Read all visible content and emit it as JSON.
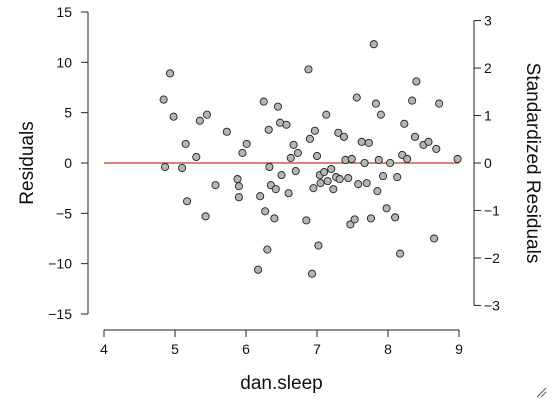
{
  "chart_data": {
    "type": "scatter",
    "xlabel": "dan.sleep",
    "ylabel": "Residuals",
    "ylabel_right": "Standardized Residuals",
    "xlim": [
      4,
      9
    ],
    "ylim": [
      -15,
      15
    ],
    "ylim_right": [
      -3,
      3
    ],
    "x_ticks": [
      4,
      5,
      6,
      7,
      8,
      9
    ],
    "y_ticks": [
      -15,
      -10,
      -5,
      0,
      5,
      10,
      15
    ],
    "y_ticks_right": [
      -3,
      -2,
      -1,
      0,
      1,
      2,
      3
    ],
    "grid": false,
    "reference_line": {
      "y": 0,
      "color": "#c0392b"
    },
    "point_color": "#b5b5b5",
    "points": [
      [
        4.84,
        6.3
      ],
      [
        4.86,
        -0.4
      ],
      [
        4.93,
        8.9
      ],
      [
        4.98,
        4.6
      ],
      [
        5.1,
        -0.5
      ],
      [
        5.15,
        1.9
      ],
      [
        5.17,
        -3.8
      ],
      [
        5.3,
        0.6
      ],
      [
        5.35,
        4.2
      ],
      [
        5.43,
        -5.3
      ],
      [
        5.45,
        4.8
      ],
      [
        5.57,
        -2.2
      ],
      [
        5.73,
        3.1
      ],
      [
        5.88,
        -1.6
      ],
      [
        5.9,
        -2.3
      ],
      [
        5.9,
        -3.4
      ],
      [
        5.95,
        1.0
      ],
      [
        6.01,
        1.9
      ],
      [
        6.17,
        -10.6
      ],
      [
        6.2,
        -3.3
      ],
      [
        6.25,
        6.1
      ],
      [
        6.27,
        -4.8
      ],
      [
        6.3,
        -8.6
      ],
      [
        6.32,
        3.3
      ],
      [
        6.33,
        -0.4
      ],
      [
        6.35,
        -2.2
      ],
      [
        6.4,
        -5.5
      ],
      [
        6.42,
        -2.6
      ],
      [
        6.45,
        5.6
      ],
      [
        6.48,
        4.0
      ],
      [
        6.5,
        -1.2
      ],
      [
        6.57,
        3.8
      ],
      [
        6.6,
        -3.0
      ],
      [
        6.63,
        0.5
      ],
      [
        6.67,
        1.8
      ],
      [
        6.7,
        -0.8
      ],
      [
        6.73,
        1.0
      ],
      [
        6.85,
        -5.7
      ],
      [
        6.88,
        9.3
      ],
      [
        6.9,
        2.4
      ],
      [
        6.93,
        -11.0
      ],
      [
        6.95,
        -2.5
      ],
      [
        6.97,
        3.2
      ],
      [
        7.0,
        0.7
      ],
      [
        7.02,
        -8.2
      ],
      [
        7.04,
        -1.2
      ],
      [
        7.05,
        -2.0
      ],
      [
        7.1,
        -0.9
      ],
      [
        7.13,
        4.8
      ],
      [
        7.15,
        -1.8
      ],
      [
        7.2,
        -0.6
      ],
      [
        7.23,
        -2.6
      ],
      [
        7.27,
        -1.4
      ],
      [
        7.3,
        3.0
      ],
      [
        7.32,
        -1.6
      ],
      [
        7.38,
        2.6
      ],
      [
        7.4,
        0.3
      ],
      [
        7.44,
        -1.5
      ],
      [
        7.47,
        -6.1
      ],
      [
        7.49,
        0.4
      ],
      [
        7.53,
        -5.6
      ],
      [
        7.56,
        6.5
      ],
      [
        7.58,
        -2.1
      ],
      [
        7.63,
        2.1
      ],
      [
        7.67,
        0.0
      ],
      [
        7.7,
        -2.0
      ],
      [
        7.73,
        2.0
      ],
      [
        7.76,
        -5.5
      ],
      [
        7.8,
        11.8
      ],
      [
        7.83,
        5.9
      ],
      [
        7.85,
        -2.8
      ],
      [
        7.87,
        0.3
      ],
      [
        7.9,
        4.8
      ],
      [
        7.93,
        -1.3
      ],
      [
        7.98,
        -4.5
      ],
      [
        8.03,
        0.0
      ],
      [
        8.1,
        -5.4
      ],
      [
        8.13,
        -1.4
      ],
      [
        8.17,
        -9.0
      ],
      [
        8.2,
        0.8
      ],
      [
        8.23,
        3.9
      ],
      [
        8.27,
        0.4
      ],
      [
        8.34,
        6.2
      ],
      [
        8.38,
        2.6
      ],
      [
        8.4,
        8.1
      ],
      [
        8.5,
        1.8
      ],
      [
        8.57,
        2.1
      ],
      [
        8.65,
        -7.5
      ],
      [
        8.72,
        5.9
      ],
      [
        8.68,
        1.4
      ],
      [
        8.98,
        0.4
      ]
    ]
  },
  "icons": {
    "resize_grip": "resize-grip-icon"
  }
}
